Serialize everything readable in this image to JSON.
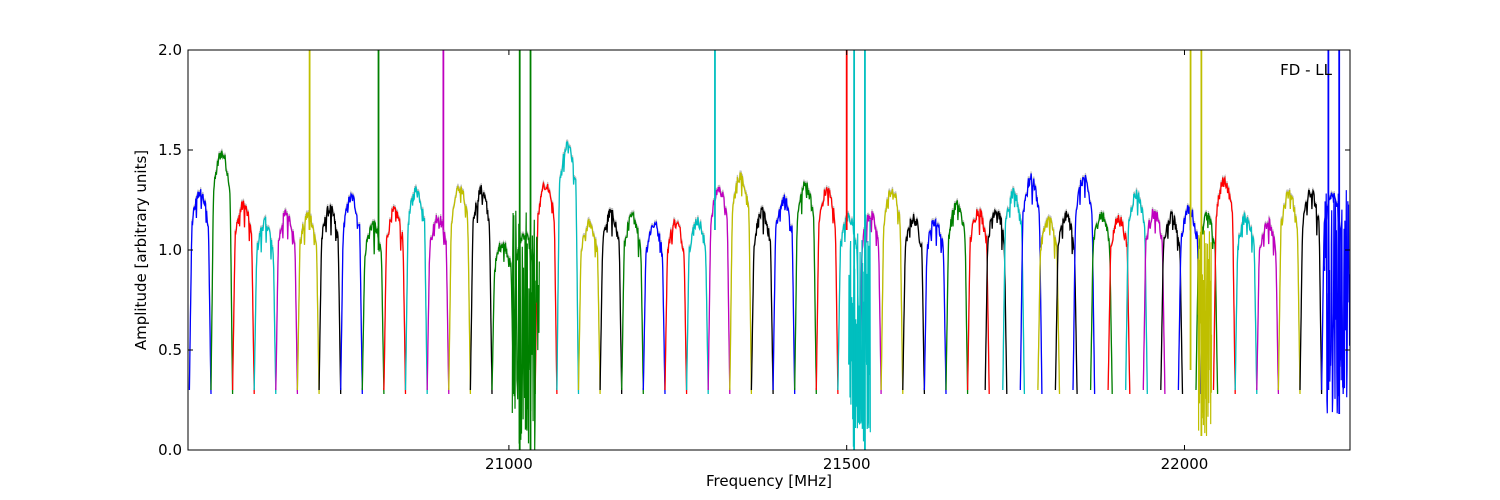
{
  "chart_data": {
    "type": "line",
    "title": "",
    "annotation": "FD - LL",
    "xlabel": "Frequency [MHz]",
    "ylabel": "Amplitude [arbitrary units]",
    "xlim": [
      20525,
      22245
    ],
    "ylim": [
      0.0,
      2.0
    ],
    "x_ticks": [
      21000,
      21500,
      22000
    ],
    "x_tick_labels": [
      "21000",
      "21500",
      "22000"
    ],
    "y_ticks": [
      0.0,
      0.5,
      1.0,
      1.5,
      2.0
    ],
    "y_tick_labels": [
      "0.0",
      "0.5",
      "1.0",
      "1.5",
      "2.0"
    ],
    "grid": false,
    "legend": "none",
    "channel_width_mhz": 32,
    "palette": [
      "#0000ff",
      "#008000",
      "#ff0000",
      "#00bfbf",
      "#bf00bf",
      "#bfbf00",
      "#000000"
    ],
    "background_color": "#c0c0c0",
    "segments": [
      {
        "color": "#0000ff",
        "x_start": 20527,
        "peak": 1.37
      },
      {
        "color": "#008000",
        "x_start": 20559,
        "peak": 1.58
      },
      {
        "color": "#ff0000",
        "x_start": 20591,
        "peak": 1.3
      },
      {
        "color": "#00bfbf",
        "x_start": 20623,
        "peak": 1.21
      },
      {
        "color": "#bf00bf",
        "x_start": 20655,
        "peak": 1.26
      },
      {
        "color": "#bfbf00",
        "x_start": 20687,
        "peak": 1.25
      },
      {
        "color": "#000000",
        "x_start": 20719,
        "peak": 1.28
      },
      {
        "color": "#0000ff",
        "x_start": 20751,
        "peak": 1.34
      },
      {
        "color": "#008000",
        "x_start": 20783,
        "peak": 1.2
      },
      {
        "color": "#ff0000",
        "x_start": 20815,
        "peak": 1.27
      },
      {
        "color": "#00bfbf",
        "x_start": 20847,
        "peak": 1.38
      },
      {
        "color": "#bf00bf",
        "x_start": 20879,
        "peak": 1.24
      },
      {
        "color": "#bfbf00",
        "x_start": 20911,
        "peak": 1.39
      },
      {
        "color": "#000000",
        "x_start": 20943,
        "peak": 1.38
      },
      {
        "color": "#008000",
        "x_start": 20975,
        "peak": 1.1
      },
      {
        "color": "#008000",
        "x_start": 21007,
        "peak": 1.15
      },
      {
        "color": "#ff0000",
        "x_start": 21039,
        "peak": 1.41
      },
      {
        "color": "#00bfbf",
        "x_start": 21071,
        "peak": 1.61
      },
      {
        "color": "#bfbf00",
        "x_start": 21103,
        "peak": 1.2
      },
      {
        "color": "#000000",
        "x_start": 21135,
        "peak": 1.26
      },
      {
        "color": "#008000",
        "x_start": 21167,
        "peak": 1.24
      },
      {
        "color": "#0000ff",
        "x_start": 21199,
        "peak": 1.2
      },
      {
        "color": "#ff0000",
        "x_start": 21231,
        "peak": 1.21
      },
      {
        "color": "#00bfbf",
        "x_start": 21263,
        "peak": 1.22
      },
      {
        "color": "#bf00bf",
        "x_start": 21295,
        "peak": 1.39
      },
      {
        "color": "#bfbf00",
        "x_start": 21327,
        "peak": 1.46
      },
      {
        "color": "#000000",
        "x_start": 21359,
        "peak": 1.26
      },
      {
        "color": "#0000ff",
        "x_start": 21391,
        "peak": 1.33
      },
      {
        "color": "#008000",
        "x_start": 21423,
        "peak": 1.41
      },
      {
        "color": "#ff0000",
        "x_start": 21455,
        "peak": 1.38
      },
      {
        "color": "#00bfbf",
        "x_start": 21487,
        "peak": 1.24
      },
      {
        "color": "#bf00bf",
        "x_start": 21519,
        "peak": 1.25
      },
      {
        "color": "#bfbf00",
        "x_start": 21551,
        "peak": 1.38
      },
      {
        "color": "#000000",
        "x_start": 21583,
        "peak": 1.23
      },
      {
        "color": "#0000ff",
        "x_start": 21615,
        "peak": 1.22
      },
      {
        "color": "#008000",
        "x_start": 21647,
        "peak": 1.3
      },
      {
        "color": "#ff0000",
        "x_start": 21679,
        "peak": 1.27
      },
      {
        "color": "#000000",
        "x_start": 21705,
        "peak": 1.28
      },
      {
        "color": "#00bfbf",
        "x_start": 21731,
        "peak": 1.36
      },
      {
        "color": "#0000ff",
        "x_start": 21757,
        "peak": 1.44
      },
      {
        "color": "#bfbf00",
        "x_start": 21783,
        "peak": 1.22
      },
      {
        "color": "#000000",
        "x_start": 21809,
        "peak": 1.24
      },
      {
        "color": "#0000ff",
        "x_start": 21835,
        "peak": 1.44
      },
      {
        "color": "#008000",
        "x_start": 21861,
        "peak": 1.25
      },
      {
        "color": "#ff0000",
        "x_start": 21887,
        "peak": 1.23
      },
      {
        "color": "#00bfbf",
        "x_start": 21913,
        "peak": 1.36
      },
      {
        "color": "#bf00bf",
        "x_start": 21939,
        "peak": 1.26
      },
      {
        "color": "#000000",
        "x_start": 21965,
        "peak": 1.24
      },
      {
        "color": "#0000ff",
        "x_start": 21991,
        "peak": 1.28
      },
      {
        "color": "#008000",
        "x_start": 22017,
        "peak": 1.24
      },
      {
        "color": "#ff0000",
        "x_start": 22043,
        "peak": 1.43
      },
      {
        "color": "#00bfbf",
        "x_start": 22075,
        "peak": 1.24
      },
      {
        "color": "#bf00bf",
        "x_start": 22107,
        "peak": 1.21
      },
      {
        "color": "#bfbf00",
        "x_start": 22139,
        "peak": 1.36
      },
      {
        "color": "#000000",
        "x_start": 22171,
        "peak": 1.37
      },
      {
        "color": "#0000ff",
        "x_start": 22203,
        "peak": 1.36
      }
    ],
    "spikes": [
      {
        "x": 20705,
        "color": "#bfbf00",
        "y_min": 1.1,
        "y_max": 2.0
      },
      {
        "x": 20807,
        "color": "#008000",
        "y_min": 1.0,
        "y_max": 2.0
      },
      {
        "x": 20903,
        "color": "#bf00bf",
        "y_min": 1.1,
        "y_max": 2.0
      },
      {
        "x": 21016,
        "color": "#008000",
        "y_min": 0.0,
        "y_max": 2.0
      },
      {
        "x": 21032,
        "color": "#008000",
        "y_min": 0.0,
        "y_max": 2.0
      },
      {
        "x": 21305,
        "color": "#00bfbf",
        "y_min": 1.1,
        "y_max": 2.0
      },
      {
        "x": 21500,
        "color": "#ff0000",
        "y_min": 1.1,
        "y_max": 2.0
      },
      {
        "x": 21511,
        "color": "#00bfbf",
        "y_min": 0.0,
        "y_max": 2.0
      },
      {
        "x": 21527,
        "color": "#00bfbf",
        "y_min": 0.0,
        "y_max": 2.0
      },
      {
        "x": 22009,
        "color": "#bfbf00",
        "y_min": 0.4,
        "y_max": 2.0
      },
      {
        "x": 22025,
        "color": "#bfbf00",
        "y_min": 0.07,
        "y_max": 2.0
      },
      {
        "x": 22213,
        "color": "#0000ff",
        "y_min": 0.3,
        "y_max": 2.0
      },
      {
        "x": 22229,
        "color": "#0000ff",
        "y_min": 0.18,
        "y_max": 2.0
      }
    ],
    "noisy_regions": [
      {
        "x_from": 21005,
        "x_to": 21045,
        "color": "#008000",
        "y_low": 0.0,
        "y_high": 1.2
      },
      {
        "x_from": 21503,
        "x_to": 21535,
        "color": "#00bfbf",
        "y_low": 0.0,
        "y_high": 1.2
      },
      {
        "x_from": 22020,
        "x_to": 22040,
        "color": "#bfbf00",
        "y_low": 0.07,
        "y_high": 1.1
      },
      {
        "x_from": 22207,
        "x_to": 22245,
        "color": "#0000ff",
        "y_low": 0.18,
        "y_high": 1.3
      }
    ]
  }
}
